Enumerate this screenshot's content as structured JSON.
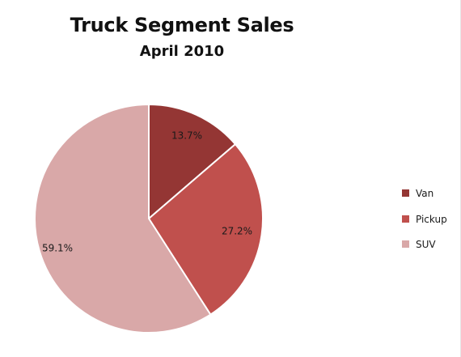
{
  "chart_data": {
    "type": "pie",
    "title": "Truck Segment Sales",
    "subtitle": "April 2010",
    "categories": [
      "Van",
      "Pickup",
      "SUV"
    ],
    "values": [
      13.7,
      27.2,
      59.1
    ],
    "labels": [
      "13.7%",
      "27.2%",
      "59.1%"
    ],
    "colors": [
      "#943634",
      "#C0504D",
      "#D9A8A8"
    ],
    "start_angle_deg": 0,
    "direction": "clockwise",
    "legend_position": "right"
  }
}
